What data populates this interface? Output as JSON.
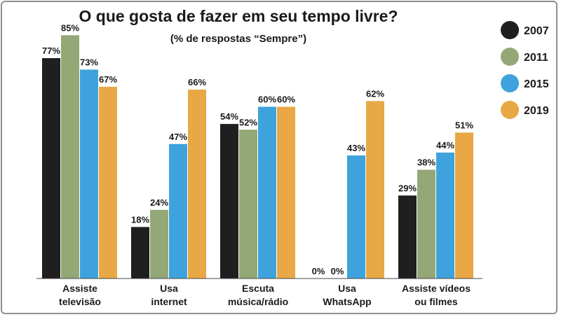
{
  "chart_data": {
    "type": "bar",
    "title": "O que gosta de fazer em seu tempo livre?",
    "subtitle": "(% de respostas “Sempre”)",
    "categories": [
      [
        "Assiste",
        "televisão"
      ],
      [
        "Usa",
        "internet"
      ],
      [
        "Escuta",
        "música/rádio"
      ],
      [
        "Usa",
        "WhatsApp"
      ],
      [
        "Assiste vídeos",
        "ou filmes"
      ]
    ],
    "series": [
      {
        "name": "2007",
        "color": "#1f1f1f",
        "values": [
          77,
          18,
          54,
          0,
          29
        ],
        "labels": [
          "77%",
          "18%",
          "54%",
          "0%",
          "29%"
        ]
      },
      {
        "name": "2011",
        "color": "#93a876",
        "values": [
          85,
          24,
          52,
          0,
          38
        ],
        "labels": [
          "85%",
          "24%",
          "52%",
          "0%",
          "38%"
        ]
      },
      {
        "name": "2015",
        "color": "#3ea3dc",
        "values": [
          73,
          47,
          60,
          43,
          44
        ],
        "labels": [
          "73%",
          "47%",
          "60%",
          "43%",
          "44%"
        ]
      },
      {
        "name": "2019",
        "color": "#e8a845",
        "values": [
          67,
          66,
          60,
          62,
          51
        ],
        "labels": [
          "67%",
          "66%",
          "60%",
          "62%",
          "51%"
        ]
      }
    ],
    "ylim": [
      0,
      100
    ],
    "legend": "right",
    "grid": false
  }
}
